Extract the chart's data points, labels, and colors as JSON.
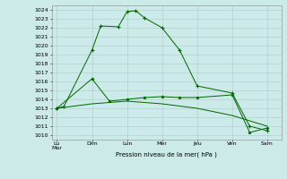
{
  "bg_color": "#cceae8",
  "grid_color": "#aacccc",
  "line_color": "#006600",
  "x_labels": [
    "Lu\nMar",
    "Dim",
    "Lun",
    "Mer",
    "Jeu",
    "Ven",
    "Sam"
  ],
  "x_positions": [
    0,
    2,
    4,
    6,
    8,
    10,
    12
  ],
  "xlabel": "Pression niveau de la mer( hPa )",
  "ylim": [
    1009.5,
    1024.5
  ],
  "yticks": [
    1010,
    1011,
    1012,
    1013,
    1014,
    1015,
    1016,
    1017,
    1018,
    1019,
    1020,
    1021,
    1022,
    1023,
    1024
  ],
  "line1_x": [
    0,
    0.4,
    2,
    2.5,
    3.5,
    4,
    4.5,
    5,
    6,
    7,
    8,
    10,
    11,
    12
  ],
  "line1_y": [
    1013.0,
    1013.2,
    1019.5,
    1022.2,
    1022.1,
    1023.8,
    1023.9,
    1023.1,
    1022.0,
    1019.5,
    1015.5,
    1014.7,
    1011.0,
    1010.5
  ],
  "line2_x": [
    0,
    2,
    3,
    4,
    5,
    6,
    7,
    8,
    10,
    11,
    12
  ],
  "line2_y": [
    1013.0,
    1016.3,
    1013.8,
    1014.0,
    1014.2,
    1014.3,
    1014.2,
    1014.2,
    1014.5,
    1010.3,
    1010.8
  ],
  "line3_x": [
    0,
    2,
    4,
    6,
    8,
    10,
    12
  ],
  "line3_y": [
    1013.0,
    1013.5,
    1013.8,
    1013.5,
    1013.0,
    1012.2,
    1011.0
  ],
  "figsize": [
    3.2,
    2.0
  ],
  "dpi": 100
}
